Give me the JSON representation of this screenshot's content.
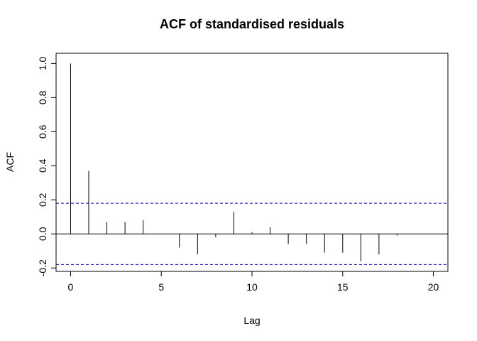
{
  "chart_data": {
    "type": "bar",
    "title": "ACF of standardised residuals",
    "xlabel": "Lag",
    "ylabel": "ACF",
    "xlim": [
      -0.8,
      20.8
    ],
    "ylim": [
      -0.22,
      1.06
    ],
    "xticks": [
      0,
      5,
      10,
      15,
      20
    ],
    "yticks": [
      -0.2,
      0.0,
      0.2,
      0.4,
      0.6,
      0.8,
      1.0
    ],
    "ytick_labels": [
      "-0.2",
      "0.0",
      "0.2",
      "0.4",
      "0.6",
      "0.8",
      "1.0"
    ],
    "lags": [
      0,
      1,
      2,
      3,
      4,
      5,
      6,
      7,
      8,
      9,
      10,
      11,
      12,
      13,
      14,
      15,
      16,
      17,
      18,
      19,
      20
    ],
    "acf": [
      1.0,
      0.37,
      0.07,
      0.07,
      0.08,
      0.0,
      -0.08,
      -0.12,
      -0.02,
      0.13,
      0.01,
      0.04,
      -0.06,
      -0.06,
      -0.11,
      -0.11,
      -0.16,
      -0.12,
      -0.01,
      0.0,
      0.0
    ],
    "confidence_band": [
      0.18,
      -0.18
    ],
    "zero_line": 0,
    "confidence_band_color": "#0000cc",
    "grid": false
  }
}
